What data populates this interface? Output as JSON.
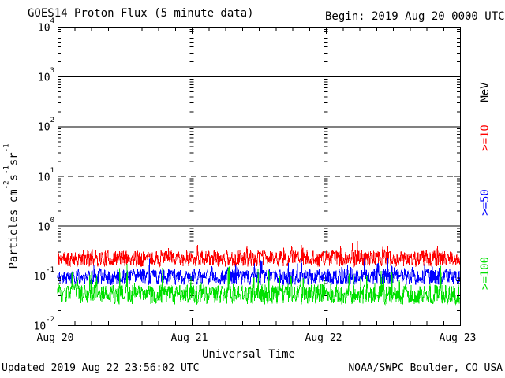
{
  "header": {
    "title": "GOES14 Proton Flux (5 minute data)",
    "begin": "Begin: 2019 Aug 20 0000 UTC"
  },
  "footer": {
    "updated": "Updated 2019 Aug 22 23:56:02 UTC",
    "source": "NOAA/SWPC Boulder, CO USA"
  },
  "chart_data": {
    "type": "line",
    "title": "GOES14 Proton Flux (5 minute data)",
    "xlabel": "Universal Time",
    "ylabel_plain": "Particles cm-2 s-1 sr-1",
    "ylabel_segments": [
      {
        "text": "Particles cm"
      },
      {
        "sup": "-2"
      },
      {
        "text": "s"
      },
      {
        "sup": "-1"
      },
      {
        "text": "sr"
      },
      {
        "sup": "-1"
      }
    ],
    "unit_label": "MeV",
    "y_scale": "log",
    "ylim": [
      0.01,
      10000
    ],
    "y_tick_base": "10",
    "y_ticks_exponents": [
      4,
      3,
      2,
      1,
      0,
      -1,
      -2
    ],
    "x_range_utc": [
      "2019 Aug 20 0000 UTC",
      "2019 Aug 23 0000 UTC"
    ],
    "x_tick_labels": [
      "Aug 20",
      "Aug 21",
      "Aug 22",
      "Aug 23"
    ],
    "x_days": 3,
    "x_minor_ticks_per_day": 8,
    "grid": {
      "solid_decades": [
        3,
        2,
        0,
        -1
      ],
      "dashed_decades": [
        1
      ],
      "interior_day_axes": [
        1,
        2
      ]
    },
    "legend_position": "right",
    "gen": {
      "n_points": 864
    },
    "series": [
      {
        "name": "Protons >=10 MeV",
        "label": ">=10",
        "color": "#ff0000",
        "approx_mean": 0.24,
        "approx_min": 0.14,
        "approx_max": 0.5,
        "behavior": "flat noisy band, no events",
        "gen": {
          "seed": 11,
          "log_base": -0.82,
          "log_spread": 0.33,
          "spike_prob": 0.06,
          "spike_amp": 0.22
        }
      },
      {
        "name": "Protons >=50 MeV",
        "label": ">=50",
        "color": "#0000ff",
        "approx_mean": 0.1,
        "approx_min": 0.065,
        "approx_max": 0.3,
        "behavior": "flat noisy band centered on 1e-1, no events",
        "gen": {
          "seed": 22,
          "log_base": -1.19,
          "log_spread": 0.32,
          "spike_prob": 0.05,
          "spike_amp": 0.28
        }
      },
      {
        "name": "Protons >=100 MeV",
        "label": ">=100",
        "color": "#00e000",
        "approx_mean": 0.045,
        "approx_min": 0.027,
        "approx_max": 0.2,
        "behavior": "flat noisy band, no events",
        "gen": {
          "seed": 33,
          "log_base": -1.58,
          "log_spread": 0.4,
          "spike_prob": 0.07,
          "spike_amp": 0.45
        }
      }
    ]
  }
}
